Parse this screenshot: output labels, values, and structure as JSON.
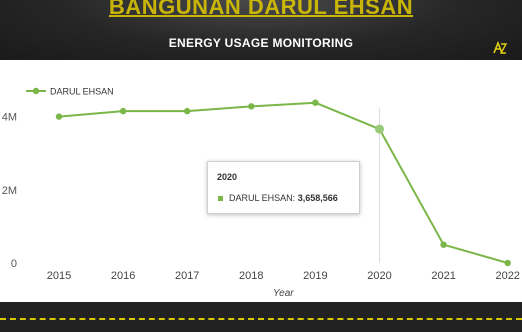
{
  "header": {
    "building_title": "BANGUNAN DARUL EHSAN",
    "subtitle": "ENERGY USAGE MONITORING",
    "logo_icon": "az-logo-icon"
  },
  "colors": {
    "accent": "#d8c300",
    "series": "#7ab648",
    "background": "#1c1c1c"
  },
  "chart_data": {
    "type": "line",
    "title": "",
    "xlabel": "Year",
    "ylabel": "",
    "x": [
      "2015",
      "2016",
      "2017",
      "2018",
      "2019",
      "2020",
      "2021",
      "2022"
    ],
    "series": [
      {
        "name": "DARUL EHSAN",
        "values": [
          4000000,
          4150000,
          4150000,
          4280000,
          4380000,
          3658566,
          500000,
          0
        ]
      }
    ],
    "yticks": [
      "0",
      "2M",
      "4M"
    ],
    "ylim": [
      0,
      5000000
    ],
    "grid": "vertical crosshair at hovered point",
    "legend": "top-left",
    "tooltip": {
      "year": "2020",
      "series": "DARUL EHSAN:",
      "value": "3,658,566",
      "index": 5
    }
  }
}
